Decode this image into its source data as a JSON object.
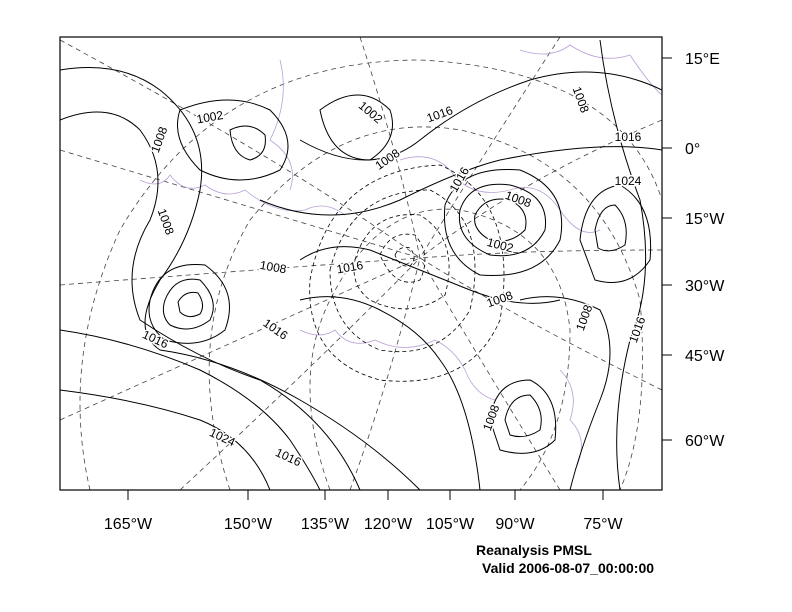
{
  "map": {
    "longitude_labels": [
      "165°W",
      "150°W",
      "135°W",
      "120°W",
      "105°W",
      "90°W",
      "75°W"
    ],
    "latitude_labels": [
      "15°E",
      "0°",
      "15°W",
      "30°W",
      "45°W",
      "60°W"
    ],
    "contour_labels": [
      "1002",
      "1008",
      "1002",
      "1016",
      "1008",
      "1016",
      "1008",
      "1016",
      "1024",
      "1008",
      "1002",
      "1008",
      "1008",
      "1016",
      "1008",
      "1008",
      "1016",
      "1016",
      "1016",
      "1008",
      "1024",
      "1016"
    ],
    "footer": {
      "title": "Reanalysis PMSL",
      "valid": "Valid 2006-08-07_00:00:00"
    }
  }
}
